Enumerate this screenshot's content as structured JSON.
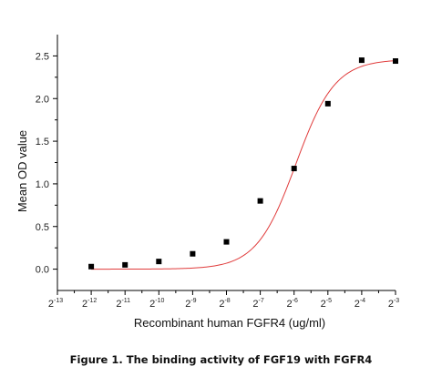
{
  "chart_data": {
    "type": "scatter",
    "x_scale": "log2",
    "x_tick_base": "2",
    "x_tick_exponents": [
      -13,
      -12,
      -11,
      -10,
      -9,
      -8,
      -7,
      -6,
      -5,
      -4,
      -3
    ],
    "xlim": [
      -13,
      -3
    ],
    "ylim": [
      -0.25,
      2.75
    ],
    "y_ticks": [
      "0.0",
      "0.5",
      "1.0",
      "1.5",
      "2.0",
      "2.5"
    ],
    "xlabel": "Recombinant human FGFR4 (ug/ml)",
    "ylabel": "Mean OD value",
    "grid": false,
    "series": [
      {
        "marker": "square",
        "color": "#000000",
        "x_exponents": [
          -12,
          -11,
          -10,
          -9,
          -8,
          -7,
          -6,
          -5,
          -4,
          -3
        ],
        "values": [
          0.03,
          0.05,
          0.09,
          0.18,
          0.32,
          0.8,
          1.18,
          1.94,
          2.45,
          2.44
        ]
      }
    ],
    "fit": {
      "type": "sigmoidal",
      "color": "#e03b3b",
      "bottom": 0.0,
      "top": 2.46,
      "log2_ec50": -5.95,
      "hill": 0.58
    }
  },
  "caption": "Figure 1. The binding activity of FGF19 with FGFR4"
}
